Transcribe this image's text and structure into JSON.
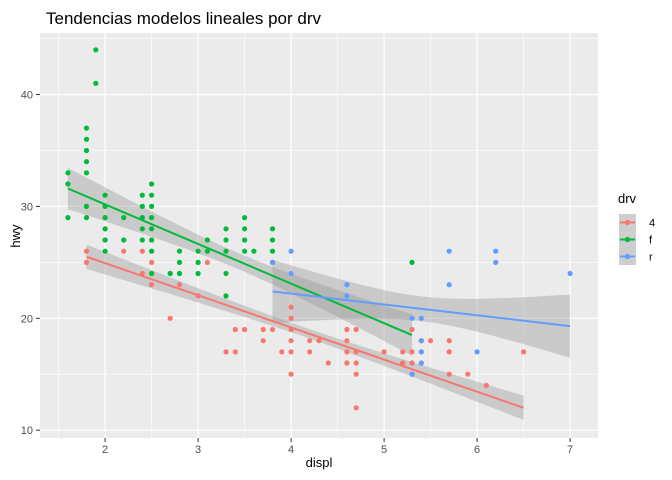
{
  "chart_data": {
    "type": "scatter",
    "title": "Tendencias modelos lineales por drv",
    "xlabel": "displ",
    "ylabel": "hwy",
    "xlim": [
      1.3,
      7.3
    ],
    "ylim": [
      9.3,
      45.5
    ],
    "x_ticks": [
      2,
      3,
      4,
      5,
      6,
      7
    ],
    "x_tick_labels": [
      "2",
      "3",
      "4",
      "5",
      "6",
      "7"
    ],
    "y_ticks": [
      10,
      20,
      30,
      40
    ],
    "y_tick_labels": [
      "10",
      "20",
      "30",
      "40"
    ],
    "grid": true,
    "legend": {
      "title": "drv",
      "position": "right"
    },
    "series": [
      {
        "name": "4",
        "color": "#F8766D",
        "points": [
          [
            1.8,
            26
          ],
          [
            1.8,
            25
          ],
          [
            2.0,
            28
          ],
          [
            2.0,
            27
          ],
          [
            2.2,
            26
          ],
          [
            2.4,
            24
          ],
          [
            2.4,
            26
          ],
          [
            2.5,
            27
          ],
          [
            2.5,
            26
          ],
          [
            2.5,
            25
          ],
          [
            2.5,
            23
          ],
          [
            2.7,
            24
          ],
          [
            2.7,
            20
          ],
          [
            2.8,
            24
          ],
          [
            2.8,
            23
          ],
          [
            3.0,
            22
          ],
          [
            3.1,
            25
          ],
          [
            3.3,
            17
          ],
          [
            3.4,
            19
          ],
          [
            3.4,
            17
          ],
          [
            3.5,
            19
          ],
          [
            3.7,
            18
          ],
          [
            3.7,
            19
          ],
          [
            3.8,
            19
          ],
          [
            3.9,
            17
          ],
          [
            4.0,
            20
          ],
          [
            4.0,
            18
          ],
          [
            4.0,
            17
          ],
          [
            4.0,
            15
          ],
          [
            4.0,
            19
          ],
          [
            4.0,
            21
          ],
          [
            4.2,
            18
          ],
          [
            4.2,
            17
          ],
          [
            4.3,
            18
          ],
          [
            4.4,
            16
          ],
          [
            4.6,
            19
          ],
          [
            4.6,
            18
          ],
          [
            4.6,
            17
          ],
          [
            4.6,
            16
          ],
          [
            4.7,
            19
          ],
          [
            4.7,
            17
          ],
          [
            4.7,
            16
          ],
          [
            4.7,
            15
          ],
          [
            4.7,
            12
          ],
          [
            5.0,
            17
          ],
          [
            5.2,
            16
          ],
          [
            5.2,
            17
          ],
          [
            5.3,
            15
          ],
          [
            5.3,
            17
          ],
          [
            5.3,
            19
          ],
          [
            5.3,
            16
          ],
          [
            5.4,
            18
          ],
          [
            5.4,
            17
          ],
          [
            5.5,
            18
          ],
          [
            5.7,
            18
          ],
          [
            5.7,
            17
          ],
          [
            5.7,
            15
          ],
          [
            5.9,
            15
          ],
          [
            6.1,
            14
          ],
          [
            6.5,
            17
          ]
        ],
        "fit": {
          "x": [
            1.8,
            6.5
          ],
          "y": [
            25.5,
            12.0
          ],
          "ci_width": 1.0
        }
      },
      {
        "name": "f",
        "color": "#00BA38",
        "points": [
          [
            1.6,
            33
          ],
          [
            1.6,
            32
          ],
          [
            1.6,
            29
          ],
          [
            1.8,
            37
          ],
          [
            1.8,
            36
          ],
          [
            1.8,
            35
          ],
          [
            1.8,
            34
          ],
          [
            1.8,
            33
          ],
          [
            1.8,
            30
          ],
          [
            1.8,
            29
          ],
          [
            1.9,
            44
          ],
          [
            1.9,
            41
          ],
          [
            2.0,
            31
          ],
          [
            2.0,
            30
          ],
          [
            2.0,
            29
          ],
          [
            2.0,
            28
          ],
          [
            2.0,
            27
          ],
          [
            2.0,
            26
          ],
          [
            2.2,
            29
          ],
          [
            2.2,
            27
          ],
          [
            2.4,
            31
          ],
          [
            2.4,
            30
          ],
          [
            2.4,
            29
          ],
          [
            2.4,
            28
          ],
          [
            2.4,
            27
          ],
          [
            2.5,
            32
          ],
          [
            2.5,
            31
          ],
          [
            2.5,
            30
          ],
          [
            2.5,
            29
          ],
          [
            2.5,
            28
          ],
          [
            2.5,
            27
          ],
          [
            2.5,
            26
          ],
          [
            2.5,
            24
          ],
          [
            2.7,
            24
          ],
          [
            2.8,
            26
          ],
          [
            2.8,
            25
          ],
          [
            2.8,
            24
          ],
          [
            3.0,
            26
          ],
          [
            3.0,
            25
          ],
          [
            3.0,
            24
          ],
          [
            3.1,
            27
          ],
          [
            3.1,
            26
          ],
          [
            3.3,
            28
          ],
          [
            3.3,
            27
          ],
          [
            3.3,
            26
          ],
          [
            3.3,
            24
          ],
          [
            3.3,
            22
          ],
          [
            3.5,
            29
          ],
          [
            3.5,
            28
          ],
          [
            3.5,
            27
          ],
          [
            3.5,
            26
          ],
          [
            3.6,
            26
          ],
          [
            3.8,
            28
          ],
          [
            3.8,
            27
          ],
          [
            3.8,
            26
          ],
          [
            3.8,
            25
          ],
          [
            5.3,
            25
          ]
        ],
        "fit": {
          "x": [
            1.6,
            5.3
          ],
          "y": [
            31.6,
            18.5
          ],
          "ci_width": 1.0
        }
      },
      {
        "name": "r",
        "color": "#619CFF",
        "points": [
          [
            3.8,
            25
          ],
          [
            4.0,
            26
          ],
          [
            4.0,
            24
          ],
          [
            4.6,
            23
          ],
          [
            4.6,
            22
          ],
          [
            5.3,
            20
          ],
          [
            5.3,
            15
          ],
          [
            5.4,
            20
          ],
          [
            5.4,
            18
          ],
          [
            5.4,
            17
          ],
          [
            5.4,
            16
          ],
          [
            5.7,
            26
          ],
          [
            5.7,
            23
          ],
          [
            6.0,
            17
          ],
          [
            6.2,
            26
          ],
          [
            6.2,
            25
          ],
          [
            7.0,
            24
          ]
        ],
        "fit": {
          "x": [
            3.8,
            7.0
          ],
          "y": [
            22.4,
            19.3
          ],
          "ci_width": 1.0
        }
      }
    ]
  }
}
